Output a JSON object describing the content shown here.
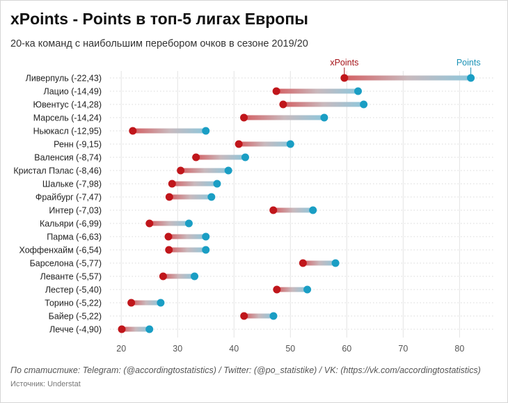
{
  "header": {
    "title": "xPoints - Points в топ-5 лигах Европы",
    "subtitle": "20-ка команд с наибольшим перебором очков в сезоне 2019/20"
  },
  "footer": {
    "stats_credit": "По статистике: Telegram: (@accordingtostatistics) / Twitter: (@po_statistike) / VK: (https://vk.com/accordingtostatistics)",
    "source": "Источник: Understat"
  },
  "colors": {
    "xpoints": "#c0161b",
    "points": "#1a9ec4",
    "xpoints_label": "#a51218",
    "points_label": "#1891b5",
    "grid": "#e3e3e3",
    "row_dots": "#d8d8d8"
  },
  "chart_data": {
    "type": "dumbbell",
    "title": "xPoints - Points в топ-5 лигах Европы",
    "subtitle": "20-ка команд с наибольшим перебором очков в сезоне 2019/20",
    "xlim": [
      18,
      86
    ],
    "xticks": [
      20,
      30,
      40,
      50,
      60,
      70,
      80
    ],
    "legend": {
      "xpoints": "xPoints",
      "points": "Points"
    },
    "rows": [
      {
        "label": "Ливерпуль (-22,43)",
        "xpoints": 59.57,
        "points": 82
      },
      {
        "label": "Лацио (-14,49)",
        "xpoints": 47.51,
        "points": 62
      },
      {
        "label": "Ювентус (-14,28)",
        "xpoints": 48.72,
        "points": 63
      },
      {
        "label": "Марсель (-14,24)",
        "xpoints": 41.76,
        "points": 56
      },
      {
        "label": "Ньюкасл (-12,95)",
        "xpoints": 22.05,
        "points": 35
      },
      {
        "label": "Ренн (-9,15)",
        "xpoints": 40.85,
        "points": 50
      },
      {
        "label": "Валенсия (-8,74)",
        "xpoints": 33.26,
        "points": 42
      },
      {
        "label": "Кристал Пэлас (-8,46)",
        "xpoints": 30.54,
        "points": 39
      },
      {
        "label": "Шальке (-7,98)",
        "xpoints": 29.02,
        "points": 37
      },
      {
        "label": "Фрайбург (-7,47)",
        "xpoints": 28.53,
        "points": 36
      },
      {
        "label": "Интер (-7,03)",
        "xpoints": 46.97,
        "points": 54
      },
      {
        "label": "Кальяри (-6,99)",
        "xpoints": 25.01,
        "points": 32
      },
      {
        "label": "Парма (-6,63)",
        "xpoints": 28.37,
        "points": 35
      },
      {
        "label": "Хоффенхайм (-6,54)",
        "xpoints": 28.46,
        "points": 35
      },
      {
        "label": "Барселона (-5,77)",
        "xpoints": 52.23,
        "points": 58
      },
      {
        "label": "Леванте (-5,57)",
        "xpoints": 27.43,
        "points": 33
      },
      {
        "label": "Лестер (-5,40)",
        "xpoints": 47.6,
        "points": 53
      },
      {
        "label": "Торино (-5,22)",
        "xpoints": 21.78,
        "points": 27
      },
      {
        "label": "Байер (-5,22)",
        "xpoints": 41.78,
        "points": 47
      },
      {
        "label": "Лечче (-4,90)",
        "xpoints": 20.1,
        "points": 25
      }
    ]
  }
}
